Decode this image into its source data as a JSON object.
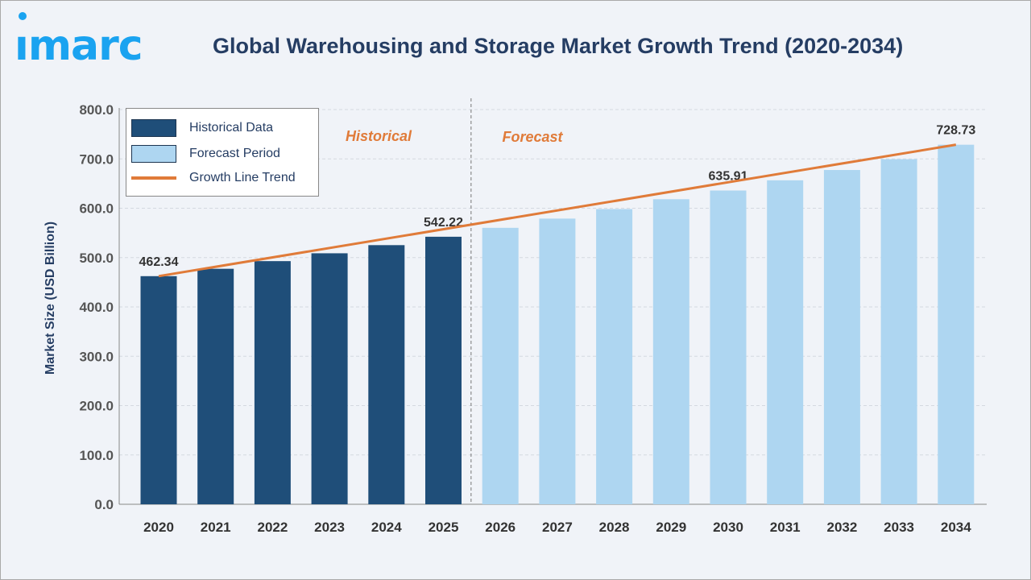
{
  "logo": {
    "text": "imarc",
    "color": "#1aa3f0"
  },
  "chart_data": {
    "type": "bar",
    "title": "Global Warehousing and Storage Market Growth Trend (2020-2034)",
    "ylabel": "Market Size (USD Billion)",
    "xlabel": "",
    "ylim": [
      0,
      800
    ],
    "yticks": [
      "0.0",
      "100.0",
      "200.0",
      "300.0",
      "400.0",
      "500.0",
      "600.0",
      "700.0",
      "800.0"
    ],
    "grid": true,
    "legend_position": "top-left",
    "categories": [
      "2020",
      "2021",
      "2022",
      "2023",
      "2024",
      "2025",
      "2026",
      "2027",
      "2028",
      "2029",
      "2030",
      "2031",
      "2032",
      "2033",
      "2034"
    ],
    "values": [
      462.34,
      477.3,
      492.8,
      508.7,
      525.2,
      542.22,
      560.3,
      579.0,
      598.3,
      618.3,
      635.91,
      656.6,
      677.5,
      699.4,
      728.73
    ],
    "period": [
      "historical",
      "historical",
      "historical",
      "historical",
      "historical",
      "historical",
      "forecast",
      "forecast",
      "forecast",
      "forecast",
      "forecast",
      "forecast",
      "forecast",
      "forecast",
      "forecast"
    ],
    "data_labels": {
      "2020": "462.34",
      "2025": "542.22",
      "2030": "635.91",
      "2034": "728.73"
    },
    "trend_line": {
      "from": {
        "x": "2020",
        "y": 462.34
      },
      "to": {
        "x": "2034",
        "y": 728.73
      }
    },
    "annotations": {
      "historical": "Historical",
      "forecast": "Forecast"
    },
    "legend": {
      "historical": "Historical Data",
      "forecast": "Forecast Period",
      "trend": "Growth Line Trend"
    },
    "colors": {
      "historical": "#1f4e79",
      "forecast": "#aed6f1",
      "trend": "#e07b39",
      "annotation": "#e07b39"
    }
  }
}
